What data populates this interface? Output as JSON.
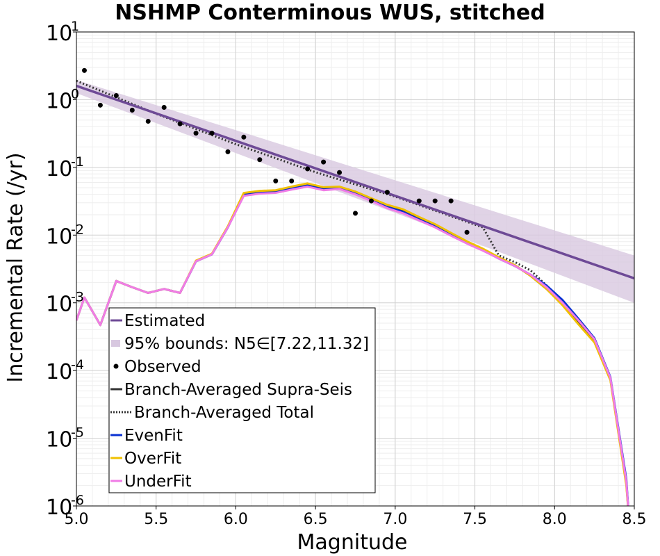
{
  "chart_data": {
    "type": "line",
    "title": "NSHMP Conterminous WUS, stitched",
    "xlabel": "Magnitude",
    "ylabel": "Incremental Rate (/yr)",
    "xlim": [
      5.0,
      8.5
    ],
    "ylim": [
      1e-06,
      10
    ],
    "yscale": "log",
    "grid": true,
    "legend_position": "bottom-left",
    "x_ticks": [
      5.0,
      5.5,
      6.0,
      6.5,
      7.0,
      7.5,
      8.0,
      8.5
    ],
    "x_tick_labels": [
      "5.0",
      "5.5",
      "6.0",
      "6.5",
      "7.0",
      "7.5",
      "8.0",
      "8.5"
    ],
    "y_ticks": [
      {
        "value": 1e-06,
        "base": "10",
        "exp": "-6"
      },
      {
        "value": 1e-05,
        "base": "10",
        "exp": "-5"
      },
      {
        "value": 0.0001,
        "base": "10",
        "exp": "-4"
      },
      {
        "value": 0.001,
        "base": "10",
        "exp": "-3"
      },
      {
        "value": 0.01,
        "base": "10",
        "exp": "-2"
      },
      {
        "value": 0.1,
        "base": "10",
        "exp": "-1"
      },
      {
        "value": 1,
        "base": "10",
        "exp": "0"
      },
      {
        "value": 10,
        "base": "10",
        "exp": "1"
      }
    ],
    "estimated": {
      "name": "Estimated",
      "color": "#6e4a96",
      "x": [
        5.0,
        8.5
      ],
      "y": [
        1.6,
        0.0023
      ]
    },
    "bounds": {
      "name": "95% bounds: N5∈[7.22,11.32]",
      "color": "#d8c8e0",
      "x": [
        5.0,
        8.5
      ],
      "lower": [
        1.25,
        0.001
      ],
      "upper": [
        1.95,
        0.005
      ]
    },
    "observed": {
      "name": "Observed",
      "color": "#000000",
      "x": [
        5.05,
        5.15,
        5.25,
        5.35,
        5.45,
        5.55,
        5.65,
        5.75,
        5.85,
        5.95,
        6.05,
        6.15,
        6.25,
        6.35,
        6.45,
        6.55,
        6.65,
        6.75,
        6.85,
        6.95,
        7.15,
        7.25,
        7.35,
        7.45
      ],
      "y": [
        2.7,
        0.83,
        1.15,
        0.7,
        0.48,
        0.77,
        0.44,
        0.32,
        0.32,
        0.17,
        0.28,
        0.13,
        0.063,
        0.063,
        0.095,
        0.12,
        0.084,
        0.021,
        0.032,
        0.043,
        0.032,
        0.032,
        0.032,
        0.011
      ]
    },
    "series": [
      {
        "name": "Branch-Averaged Supra-Seis",
        "color": "#333333",
        "style": "solid",
        "x": [
          5.0,
          5.05,
          5.15,
          5.25,
          5.35,
          5.45,
          5.55,
          5.65,
          5.75,
          5.85,
          5.95,
          6.05,
          6.15,
          6.25,
          6.35,
          6.45,
          6.55,
          6.65,
          6.75,
          6.85,
          6.95,
          7.05,
          7.15,
          7.25,
          7.35,
          7.45,
          7.55,
          7.65,
          7.75,
          7.85,
          7.95,
          8.05,
          8.15,
          8.25,
          8.35,
          8.45,
          8.47
        ],
        "y": [
          0.00055,
          0.0012,
          0.00047,
          0.0021,
          0.0017,
          0.0014,
          0.0016,
          0.0014,
          0.0041,
          0.0052,
          0.013,
          0.041,
          0.043,
          0.044,
          0.05,
          0.055,
          0.048,
          0.05,
          0.042,
          0.034,
          0.027,
          0.023,
          0.018,
          0.014,
          0.0105,
          0.0079,
          0.0062,
          0.0046,
          0.0036,
          0.0025,
          0.0016,
          0.00095,
          0.0005,
          0.00027,
          7.5e-05,
          2.2e-06,
          5e-07
        ]
      },
      {
        "name": "Branch-Averaged Total",
        "color": "#333333",
        "style": "dotted",
        "x": [
          5.0,
          5.5,
          6.0,
          6.5,
          7.0,
          7.55,
          7.65,
          7.75,
          7.85,
          7.95
        ],
        "y": [
          1.9,
          0.62,
          0.22,
          0.085,
          0.037,
          0.013,
          0.005,
          0.004,
          0.003,
          0.0018
        ]
      },
      {
        "name": "EvenFit",
        "color": "#0a32d2",
        "style": "solid",
        "x": [
          5.0,
          5.05,
          5.15,
          5.25,
          5.35,
          5.45,
          5.55,
          5.65,
          5.75,
          5.85,
          5.95,
          6.05,
          6.15,
          6.25,
          6.35,
          6.45,
          6.55,
          6.65,
          6.75,
          6.85,
          6.95,
          7.05,
          7.15,
          7.25,
          7.35,
          7.45,
          7.55,
          7.65,
          7.75,
          7.85,
          7.95,
          8.05,
          8.15,
          8.25,
          8.35,
          8.45,
          8.47
        ],
        "y": [
          0.00055,
          0.0012,
          0.00047,
          0.0021,
          0.0017,
          0.0014,
          0.0016,
          0.0014,
          0.0041,
          0.0052,
          0.013,
          0.04,
          0.042,
          0.043,
          0.049,
          0.054,
          0.047,
          0.049,
          0.041,
          0.033,
          0.026,
          0.022,
          0.017,
          0.0135,
          0.0102,
          0.0077,
          0.006,
          0.0045,
          0.0035,
          0.0026,
          0.0018,
          0.0011,
          0.00058,
          0.0003,
          8e-05,
          2.5e-06,
          5e-07
        ]
      },
      {
        "name": "OverFit",
        "color": "#f0c000",
        "style": "solid",
        "x": [
          5.0,
          5.05,
          5.15,
          5.25,
          5.35,
          5.45,
          5.55,
          5.65,
          5.75,
          5.85,
          5.95,
          6.05,
          6.15,
          6.25,
          6.35,
          6.45,
          6.55,
          6.65,
          6.75,
          6.85,
          6.95,
          7.05,
          7.15,
          7.25,
          7.35,
          7.45,
          7.55,
          7.65,
          7.75,
          7.85,
          7.95,
          8.05,
          8.15,
          8.25,
          8.35,
          8.45,
          8.47
        ],
        "y": [
          0.00055,
          0.0012,
          0.00047,
          0.0021,
          0.0017,
          0.0014,
          0.0016,
          0.0014,
          0.0042,
          0.0053,
          0.0135,
          0.042,
          0.045,
          0.046,
          0.052,
          0.058,
          0.051,
          0.052,
          0.044,
          0.035,
          0.028,
          0.024,
          0.0185,
          0.0145,
          0.0108,
          0.0081,
          0.0063,
          0.0047,
          0.0036,
          0.0025,
          0.0016,
          0.00092,
          0.00048,
          0.00026,
          7.2e-05,
          2e-06,
          5e-07
        ]
      },
      {
        "name": "UnderFit",
        "color": "#f07ce6",
        "style": "solid",
        "x": [
          5.0,
          5.05,
          5.15,
          5.25,
          5.35,
          5.45,
          5.55,
          5.65,
          5.75,
          5.85,
          5.95,
          6.05,
          6.15,
          6.25,
          6.35,
          6.45,
          6.55,
          6.65,
          6.75,
          6.85,
          6.95,
          7.05,
          7.15,
          7.25,
          7.35,
          7.45,
          7.55,
          7.65,
          7.75,
          7.85,
          7.95,
          8.05,
          8.15,
          8.25,
          8.35,
          8.45,
          8.47
        ],
        "y": [
          0.00055,
          0.0012,
          0.00047,
          0.0021,
          0.0017,
          0.0014,
          0.0016,
          0.0014,
          0.0041,
          0.0052,
          0.013,
          0.038,
          0.041,
          0.042,
          0.047,
          0.052,
          0.046,
          0.048,
          0.04,
          0.032,
          0.025,
          0.021,
          0.0165,
          0.013,
          0.0098,
          0.0075,
          0.0059,
          0.0045,
          0.0035,
          0.0026,
          0.0017,
          0.001,
          0.00055,
          0.00029,
          7.8e-05,
          2.3e-06,
          5e-07
        ]
      }
    ],
    "legend": [
      {
        "label": "Estimated",
        "kind": "line",
        "color": "#6e4a96",
        "style": "solid"
      },
      {
        "label": "95% bounds: N5∈[7.22,11.32]",
        "kind": "patch",
        "color": "#d8c8e0"
      },
      {
        "label": "Observed",
        "kind": "dot",
        "color": "#000000"
      },
      {
        "label": "Branch-Averaged Supra-Seis",
        "kind": "line",
        "color": "#333333",
        "style": "solid"
      },
      {
        "label": "Branch-Averaged Total",
        "kind": "line",
        "color": "#333333",
        "style": "dotted"
      },
      {
        "label": "EvenFit",
        "kind": "line",
        "color": "#0a32d2",
        "style": "solid"
      },
      {
        "label": "OverFit",
        "kind": "line",
        "color": "#f0c000",
        "style": "solid"
      },
      {
        "label": "UnderFit",
        "kind": "line",
        "color": "#f07ce6",
        "style": "solid"
      }
    ]
  }
}
